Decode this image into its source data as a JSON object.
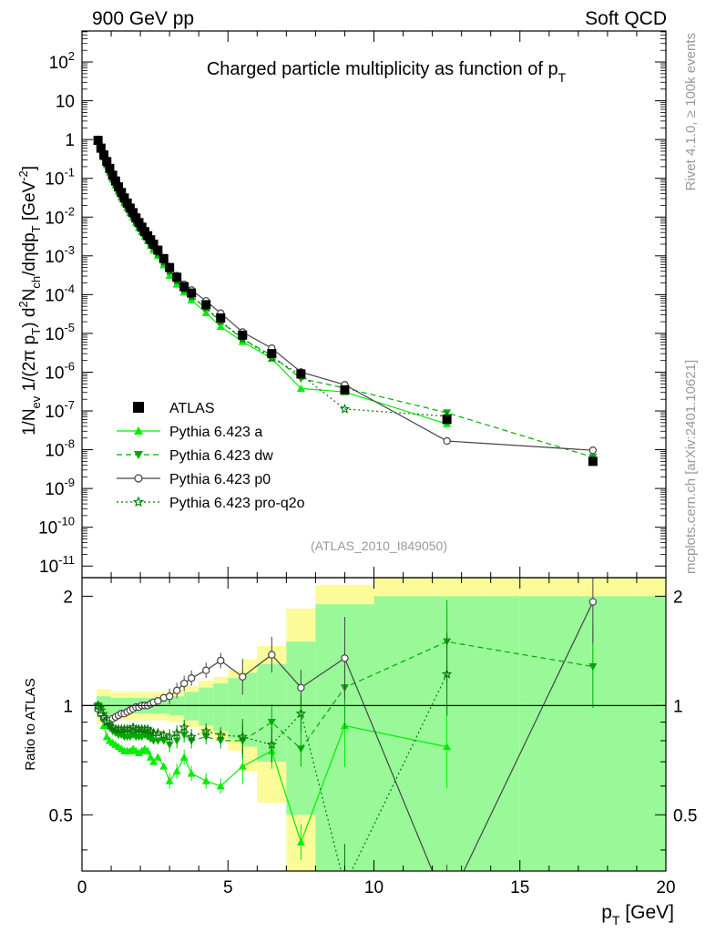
{
  "header": {
    "left": "900 GeV pp",
    "right": "Soft QCD"
  },
  "side": {
    "rivet": "Rivet 4.1.0, ≥ 100k events",
    "mcplots": "mcplots.cern.ch [arXiv:2401.10621]"
  },
  "chart_data": {
    "type": "scatter",
    "title": "Charged particle multiplicity as function of p_T",
    "analysis_tag": "(ATLAS_2010_I849050)",
    "xlabel": "p_T [GeV]",
    "ylabel": "1/N_ev 1/(2π p_T) d²N_ch/dηdp_T [GeV⁻²]",
    "ratio_ylabel": "Ratio to ATLAS",
    "xlim": [
      0,
      20
    ],
    "ylim_log10": [
      -11.3,
      2.8
    ],
    "ratio_ylim": [
      0.35,
      2.25
    ],
    "x_ticks": [
      "0",
      "5",
      "10",
      "15",
      "20"
    ],
    "y_ticks": [
      "10^-11",
      "10^-10",
      "10^-9",
      "10^-8",
      "10^-7",
      "10^-6",
      "10^-5",
      "10^-4",
      "10^-3",
      "10^-2",
      "10^-1",
      "1",
      "10",
      "10^2"
    ],
    "ratio_ticks": [
      "0.5",
      "1",
      "2"
    ],
    "x": [
      0.55,
      0.65,
      0.75,
      0.85,
      0.95,
      1.05,
      1.15,
      1.25,
      1.35,
      1.45,
      1.55,
      1.65,
      1.75,
      1.85,
      1.95,
      2.05,
      2.15,
      2.25,
      2.35,
      2.45,
      2.6,
      2.8,
      3.0,
      3.25,
      3.5,
      3.75,
      4.25,
      4.75,
      5.5,
      6.5,
      7.5,
      9.0,
      12.5,
      17.5
    ],
    "series": [
      {
        "name": "ATLAS",
        "style": "data",
        "color": "#000000",
        "values": [
          0.95,
          0.6,
          0.4,
          0.27,
          0.18,
          0.12,
          0.085,
          0.06,
          0.043,
          0.031,
          0.023,
          0.017,
          0.013,
          0.0095,
          0.0072,
          0.0055,
          0.0042,
          0.0033,
          0.0026,
          0.002,
          0.0014,
          0.00085,
          0.0005,
          0.00028,
          0.00016,
          0.00011,
          5.5e-05,
          2.5e-05,
          9e-06,
          3e-06,
          9e-07,
          3.5e-07,
          6e-08,
          5e-09
        ]
      },
      {
        "name": "Pythia 6.423 a",
        "style": "solid",
        "marker": "triangle-up",
        "color": "#00ee00",
        "ratio": [
          0.98,
          0.95,
          0.88,
          0.82,
          0.8,
          0.79,
          0.78,
          0.77,
          0.76,
          0.75,
          0.75,
          0.75,
          0.76,
          0.75,
          0.74,
          0.75,
          0.76,
          0.75,
          0.72,
          0.7,
          0.72,
          0.68,
          0.62,
          0.66,
          0.72,
          0.65,
          0.62,
          0.6,
          0.68,
          0.75,
          0.42,
          0.88,
          0.77,
          null
        ]
      },
      {
        "name": "Pythia 6.423 dw",
        "style": "dashed",
        "marker": "triangle-down",
        "color": "#00aa00",
        "ratio": [
          1.0,
          0.98,
          0.94,
          0.9,
          0.87,
          0.85,
          0.84,
          0.83,
          0.83,
          0.82,
          0.82,
          0.82,
          0.83,
          0.82,
          0.82,
          0.82,
          0.83,
          0.82,
          0.81,
          0.8,
          0.8,
          0.8,
          0.78,
          0.8,
          0.83,
          0.8,
          0.82,
          0.8,
          0.8,
          0.9,
          0.76,
          1.12,
          1.5,
          1.28
        ]
      },
      {
        "name": "Pythia 6.423 p0",
        "style": "solid",
        "marker": "circle-open",
        "color": "#444444",
        "ratio": [
          0.98,
          0.95,
          0.92,
          0.91,
          0.91,
          0.92,
          0.93,
          0.94,
          0.95,
          0.95,
          0.96,
          0.97,
          0.98,
          0.99,
          0.99,
          1.0,
          1.0,
          1.0,
          1.01,
          1.02,
          1.03,
          1.05,
          1.06,
          1.1,
          1.15,
          1.19,
          1.25,
          1.33,
          1.2,
          1.38,
          1.12,
          1.35,
          0.28,
          1.93
        ]
      },
      {
        "name": "Pythia 6.423 pro-q2o",
        "style": "dotted",
        "marker": "star-open",
        "color": "#007700",
        "ratio": [
          1.0,
          0.97,
          0.93,
          0.9,
          0.88,
          0.87,
          0.86,
          0.86,
          0.86,
          0.86,
          0.86,
          0.86,
          0.87,
          0.86,
          0.86,
          0.86,
          0.86,
          0.86,
          0.85,
          0.84,
          0.84,
          0.83,
          0.82,
          0.84,
          0.87,
          0.82,
          0.85,
          0.83,
          0.82,
          0.78,
          0.95,
          0.32,
          1.22,
          null
        ]
      }
    ],
    "bands": {
      "inner_color": "#99f999",
      "outer_color": "#fbfb99",
      "edges": [
        0.5,
        1.0,
        2.0,
        3.0,
        3.5,
        4.0,
        4.5,
        5.0,
        5.5,
        6.0,
        7.0,
        8.0,
        10.0,
        15.0,
        20.0
      ],
      "inner_half_width": [
        0.06,
        0.05,
        0.05,
        0.06,
        0.09,
        0.12,
        0.15,
        0.19,
        0.23,
        0.3,
        0.5,
        0.9,
        1.0,
        1.0
      ],
      "outer_half_width": [
        0.11,
        0.09,
        0.09,
        0.1,
        0.13,
        0.17,
        0.2,
        0.25,
        0.34,
        0.46,
        0.85,
        1.15,
        1.25,
        1.25
      ]
    },
    "legend_position": "middle-left"
  }
}
